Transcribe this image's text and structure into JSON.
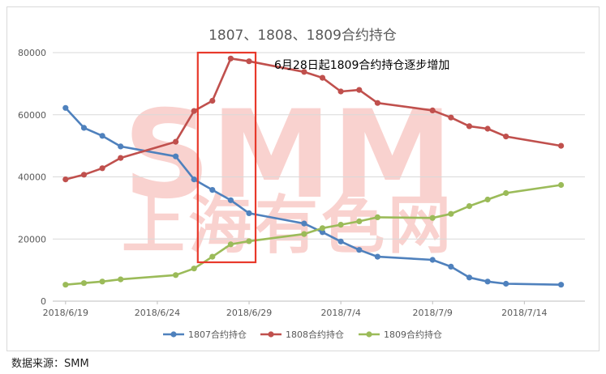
{
  "source_note": "数据来源：SMM",
  "watermark": {
    "brand": "SMM",
    "cn": "上海有色网"
  },
  "chart_data": {
    "type": "line",
    "title": "1807、1808、1809合约持仓",
    "annotation": "6月28日起1809合约持仓逐步增加",
    "x_tick_labels": [
      "2018/6/19",
      "2018/6/24",
      "2018/6/29",
      "2018/7/4",
      "2018/7/9",
      "2018/7/14"
    ],
    "x_tick_dates": [
      "2018-06-19",
      "2018-06-24",
      "2018-06-29",
      "2018-07-04",
      "2018-07-09",
      "2018-07-14"
    ],
    "y_ticks": [
      0,
      20000,
      40000,
      60000,
      80000
    ],
    "ylim": [
      0,
      80000
    ],
    "highlight_range": [
      "2018-06-27",
      "2018-06-29"
    ],
    "legend_position": "bottom",
    "dates": [
      "2018-06-19",
      "2018-06-20",
      "2018-06-21",
      "2018-06-22",
      "2018-06-25",
      "2018-06-26",
      "2018-06-27",
      "2018-06-28",
      "2018-06-29",
      "2018-07-02",
      "2018-07-03",
      "2018-07-04",
      "2018-07-05",
      "2018-07-06",
      "2018-07-09",
      "2018-07-10",
      "2018-07-11",
      "2018-07-12",
      "2018-07-13",
      "2018-07-16"
    ],
    "series": [
      {
        "name": "1807合约持仓",
        "color": "#4f81bd",
        "values": [
          62200,
          55800,
          53200,
          49800,
          46600,
          39200,
          35800,
          32500,
          28300,
          25000,
          22200,
          19200,
          16500,
          14300,
          13300,
          11100,
          7600,
          6300,
          5600,
          5300
        ]
      },
      {
        "name": "1808合约持仓",
        "color": "#c0504d",
        "values": [
          39200,
          40700,
          42800,
          46100,
          51300,
          61200,
          64500,
          78100,
          77200,
          73800,
          71900,
          67500,
          68000,
          63800,
          61400,
          59100,
          56300,
          55500,
          53000,
          50000
        ]
      },
      {
        "name": "1809合约持仓",
        "color": "#9bbb59",
        "values": [
          5300,
          5800,
          6300,
          7000,
          8400,
          10500,
          14300,
          18300,
          19300,
          21600,
          23500,
          24600,
          25700,
          27000,
          26800,
          28100,
          30600,
          32700,
          34800,
          37400
        ]
      }
    ]
  }
}
